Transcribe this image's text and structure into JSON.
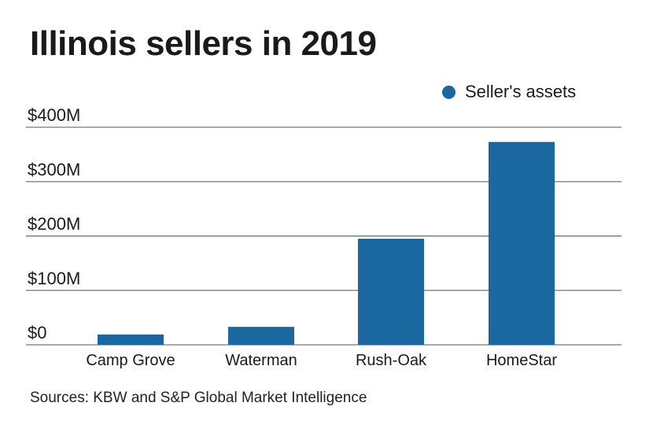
{
  "title": "Illinois sellers in 2019",
  "source": "Sources: KBW and S&P Global Market Intelligence",
  "colors": {
    "bar": "#1b67a0",
    "grid": "#555555"
  },
  "chart_data": {
    "type": "bar",
    "title": "Illinois sellers in 2019",
    "categories": [
      "Camp Grove",
      "Waterman",
      "Rush-Oak",
      "HomeStar"
    ],
    "series": [
      {
        "name": "Seller's assets",
        "values": [
          19,
          33,
          195,
          373
        ]
      }
    ],
    "ylim": [
      0,
      400
    ],
    "yticks": [
      0,
      100,
      200,
      300,
      400
    ],
    "ytick_labels": [
      "$0",
      "$100M",
      "$200M",
      "$300M",
      "$400M"
    ],
    "xlabel": "",
    "ylabel": "",
    "grid": true,
    "legend_position": "top-right"
  }
}
